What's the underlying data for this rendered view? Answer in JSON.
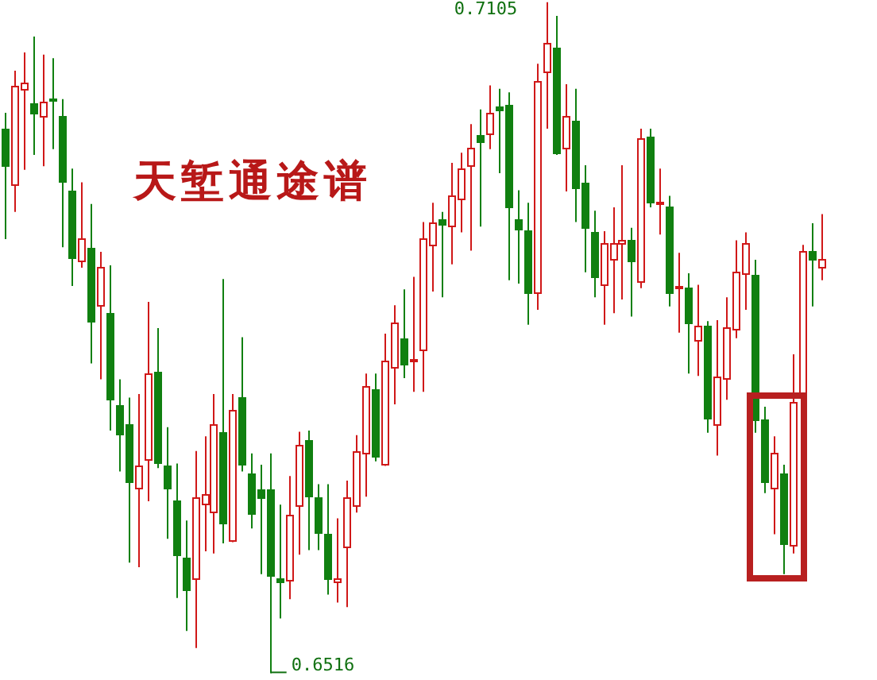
{
  "chart_data": {
    "type": "candlestick",
    "title": "天堑通途谱",
    "categories": [
      null,
      null,
      null,
      null,
      null,
      null,
      null,
      null,
      null,
      null,
      null,
      null,
      null,
      null,
      null,
      null,
      null,
      null,
      null,
      null,
      null,
      null,
      null,
      null,
      null,
      null,
      null,
      null,
      null,
      null,
      null,
      null,
      null,
      null,
      null,
      null,
      null,
      null,
      null,
      null,
      null,
      null,
      null,
      null,
      null,
      null,
      null,
      null,
      null,
      null,
      null,
      null,
      null,
      null,
      null,
      null,
      null,
      null,
      null,
      null,
      null,
      null,
      null,
      null,
      null,
      null,
      null,
      null,
      null,
      null,
      null,
      null,
      null,
      null,
      null,
      null,
      null,
      null,
      null,
      null,
      null,
      null,
      null,
      null,
      null,
      null,
      null
    ],
    "ohlc": [
      [
        0.6994,
        0.7008,
        0.6897,
        0.6962
      ],
      [
        0.6946,
        0.7045,
        0.6921,
        0.7032
      ],
      [
        0.7029,
        0.7061,
        0.6958,
        0.7034
      ],
      [
        0.7016,
        0.7075,
        0.6971,
        0.7007
      ],
      [
        0.7005,
        0.7059,
        0.6961,
        0.7018
      ],
      [
        0.702,
        0.7056,
        0.6976,
        0.7018
      ],
      [
        0.7005,
        0.702,
        0.689,
        0.6948
      ],
      [
        0.694,
        0.6959,
        0.6856,
        0.6882
      ],
      [
        0.6878,
        0.6947,
        0.6872,
        0.6898
      ],
      [
        0.689,
        0.6928,
        0.6788,
        0.6826
      ],
      [
        0.6838,
        0.6886,
        0.6774,
        0.6872
      ],
      [
        0.6832,
        0.6874,
        0.6729,
        0.6756
      ],
      [
        0.6752,
        0.6774,
        0.6693,
        0.6727
      ],
      [
        0.6735,
        0.6758,
        0.6613,
        0.6685
      ],
      [
        0.6679,
        0.6761,
        0.6609,
        0.6699
      ],
      [
        0.6704,
        0.6842,
        0.6667,
        0.6779
      ],
      [
        0.6781,
        0.6819,
        0.6696,
        0.6702
      ],
      [
        0.6698,
        0.6732,
        0.6634,
        0.6679
      ],
      [
        0.6667,
        0.67,
        0.6582,
        0.6619
      ],
      [
        0.6617,
        0.665,
        0.6553,
        0.6589
      ],
      [
        0.6599,
        0.6711,
        0.6538,
        0.667
      ],
      [
        0.6664,
        0.6724,
        0.6623,
        0.6673
      ],
      [
        0.6657,
        0.6761,
        0.6621,
        0.6734
      ],
      [
        0.6728,
        0.6862,
        0.663,
        0.6648
      ],
      [
        0.6632,
        0.6761,
        0.6631,
        0.6747
      ],
      [
        0.6758,
        0.6811,
        0.6693,
        0.67
      ],
      [
        0.6692,
        0.6709,
        0.6643,
        0.6657
      ],
      [
        0.6678,
        0.6699,
        0.6603,
        0.6671
      ],
      [
        0.6677,
        0.6709,
        0.6516,
        0.6602
      ],
      [
        0.6599,
        0.6664,
        0.6564,
        0.6596
      ],
      [
        0.6598,
        0.6689,
        0.6581,
        0.6655
      ],
      [
        0.6664,
        0.6728,
        0.662,
        0.6717
      ],
      [
        0.672,
        0.6729,
        0.6624,
        0.6671
      ],
      [
        0.6671,
        0.6682,
        0.6624,
        0.6641
      ],
      [
        0.6638,
        0.6682,
        0.6585,
        0.6599
      ],
      [
        0.6596,
        0.6652,
        0.6578,
        0.6599
      ],
      [
        0.6627,
        0.6685,
        0.6574,
        0.667
      ],
      [
        0.6664,
        0.6725,
        0.6657,
        0.6711
      ],
      [
        0.671,
        0.6779,
        0.6671,
        0.6768
      ],
      [
        0.6765,
        0.6779,
        0.6702,
        0.6707
      ],
      [
        0.6699,
        0.6814,
        0.6698,
        0.679
      ],
      [
        0.6785,
        0.6839,
        0.6752,
        0.6824
      ],
      [
        0.681,
        0.6853,
        0.6775,
        0.6788
      ],
      [
        0.679,
        0.6864,
        0.6763,
        0.6792
      ],
      [
        0.6801,
        0.6912,
        0.6763,
        0.6898
      ],
      [
        0.6893,
        0.6929,
        0.6851,
        0.6912
      ],
      [
        0.6915,
        0.6921,
        0.6846,
        0.6911
      ],
      [
        0.6908,
        0.6964,
        0.6875,
        0.6935
      ],
      [
        0.6933,
        0.6973,
        0.6903,
        0.6959
      ],
      [
        0.6962,
        0.6998,
        0.6887,
        0.6977
      ],
      [
        0.6989,
        0.7011,
        0.6908,
        0.6984
      ],
      [
        0.699,
        0.7032,
        0.6976,
        0.7008
      ],
      [
        0.7014,
        0.7029,
        0.6955,
        0.7011
      ],
      [
        0.7015,
        0.7026,
        0.6861,
        0.6926
      ],
      [
        0.6914,
        0.694,
        0.6858,
        0.6905
      ],
      [
        0.6905,
        0.6929,
        0.6822,
        0.685
      ],
      [
        0.685,
        0.7051,
        0.6835,
        0.7036
      ],
      [
        0.7045,
        0.7105,
        0.6994,
        0.707
      ],
      [
        0.7065,
        0.7093,
        0.6971,
        0.6973
      ],
      [
        0.6977,
        0.7033,
        0.6939,
        0.7005
      ],
      [
        0.7001,
        0.7029,
        0.6912,
        0.6943
      ],
      [
        0.6946,
        0.6962,
        0.6868,
        0.6907
      ],
      [
        0.6903,
        0.6922,
        0.6846,
        0.6864
      ],
      [
        0.6858,
        0.6904,
        0.6822,
        0.6894
      ],
      [
        0.688,
        0.6925,
        0.6832,
        0.6894
      ],
      [
        0.6894,
        0.6962,
        0.6844,
        0.6897
      ],
      [
        0.6897,
        0.6907,
        0.6829,
        0.6879
      ],
      [
        0.686,
        0.6994,
        0.6854,
        0.6986
      ],
      [
        0.6987,
        0.6994,
        0.6925,
        0.693
      ],
      [
        0.6929,
        0.6959,
        0.6901,
        0.693
      ],
      [
        0.6926,
        0.6935,
        0.6838,
        0.6851
      ],
      [
        0.6854,
        0.6885,
        0.6815,
        0.6856
      ],
      [
        0.6854,
        0.6867,
        0.6779,
        0.6824
      ],
      [
        0.6808,
        0.6857,
        0.6777,
        0.6821
      ],
      [
        0.6821,
        0.6825,
        0.6727,
        0.674
      ],
      [
        0.6735,
        0.6826,
        0.6707,
        0.6777
      ],
      [
        0.6775,
        0.6846,
        0.6756,
        0.6819
      ],
      [
        0.6819,
        0.6896,
        0.681,
        0.6869
      ],
      [
        0.6867,
        0.6903,
        0.6835,
        0.6894
      ],
      [
        0.6865,
        0.6879,
        0.6727,
        0.6738
      ],
      [
        0.6739,
        0.675,
        0.6674,
        0.6684
      ],
      [
        0.6678,
        0.6724,
        0.6638,
        0.6709
      ],
      [
        0.6691,
        0.6699,
        0.6603,
        0.663
      ],
      [
        0.6628,
        0.6796,
        0.6621,
        0.6754
      ],
      [
        0.6761,
        0.6892,
        0.6761,
        0.6887
      ],
      [
        0.6886,
        0.6911,
        0.6838,
        0.6879
      ],
      [
        0.6872,
        0.6919,
        0.6861,
        0.6879
      ]
    ],
    "colors": [
      "#108010",
      "#d01818",
      "#d01818",
      "#108010",
      "#d01818",
      "#108010",
      "#108010",
      "#108010",
      "#d01818",
      "#108010",
      "#d01818",
      "#108010",
      "#108010",
      "#108010",
      "#d01818",
      "#d01818",
      "#108010",
      "#108010",
      "#108010",
      "#108010",
      "#d01818",
      "#d01818",
      "#d01818",
      "#108010",
      "#d01818",
      "#108010",
      "#108010",
      "#108010",
      "#108010",
      "#108010",
      "#d01818",
      "#d01818",
      "#108010",
      "#108010",
      "#108010",
      "#d01818",
      "#d01818",
      "#d01818",
      "#d01818",
      "#108010",
      "#d01818",
      "#d01818",
      "#108010",
      "#d01818",
      "#d01818",
      "#d01818",
      "#108010",
      "#d01818",
      "#d01818",
      "#d01818",
      "#108010",
      "#d01818",
      "#108010",
      "#108010",
      "#108010",
      "#108010",
      "#d01818",
      "#d01818",
      "#108010",
      "#d01818",
      "#108010",
      "#108010",
      "#108010",
      "#d01818",
      "#d01818",
      "#d01818",
      "#108010",
      "#d01818",
      "#108010",
      "#d01818",
      "#108010",
      "#d01818",
      "#108010",
      "#d01818",
      "#108010",
      "#d01818",
      "#d01818",
      "#d01818",
      "#d01818",
      "#108010",
      "#108010",
      "#d01818",
      "#108010",
      "#d01818",
      "#d01818",
      "#108010",
      "#d01818"
    ],
    "ylim": [
      0.651,
      0.7107
    ],
    "annotations": [
      "0.7105",
      "0.6516"
    ]
  }
}
